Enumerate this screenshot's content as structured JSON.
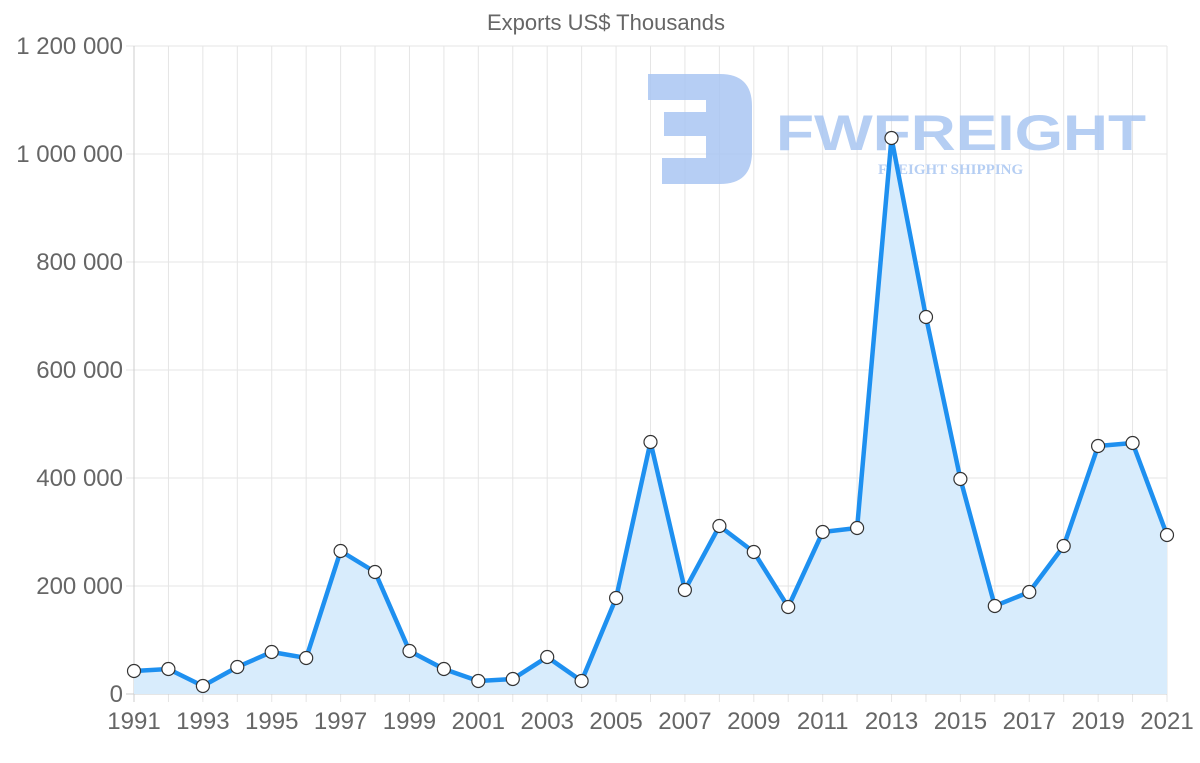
{
  "chart_data": {
    "type": "line",
    "title": "Exports US$ Thousands",
    "xlabel": "",
    "ylabel": "",
    "x": [
      1991,
      1992,
      1993,
      1994,
      1995,
      1996,
      1997,
      1998,
      1999,
      2000,
      2001,
      2002,
      2003,
      2004,
      2005,
      2006,
      2007,
      2008,
      2009,
      2010,
      2011,
      2012,
      2013,
      2014,
      2015,
      2016,
      2017,
      2018,
      2019,
      2020,
      2021
    ],
    "series": [
      {
        "name": "Exports US$ Thousands",
        "values": [
          42600,
          46300,
          14800,
          50000,
          77800,
          66700,
          264800,
          225900,
          79600,
          46300,
          24100,
          27800,
          68500,
          24100,
          177800,
          466700,
          192600,
          311100,
          263000,
          161100,
          300000,
          307400,
          1029600,
          698100,
          398100,
          163000,
          188900,
          274100,
          459300,
          464800,
          294400
        ]
      }
    ],
    "ylim": [
      0,
      1200000
    ],
    "yticks": [
      0,
      200000,
      400000,
      600000,
      800000,
      1000000,
      1200000
    ],
    "ytick_labels": [
      "0",
      "200 000",
      "400 000",
      "600 000",
      "800 000",
      "1 000 000",
      "1 200 000"
    ],
    "xtick_labels": [
      "1991",
      "1993",
      "1995",
      "1997",
      "1999",
      "2001",
      "2003",
      "2005",
      "2007",
      "2009",
      "2011",
      "2013",
      "2015",
      "2017",
      "2019",
      "2021"
    ],
    "grid": true,
    "legend": "none",
    "filled_area": true,
    "colors": {
      "line": "#1e90f0",
      "fill": "#d8ecfc",
      "point_fill": "#ffffff",
      "point_stroke": "#333333",
      "grid": "#e5e5e5",
      "text": "#666666"
    }
  },
  "watermark": {
    "brand": "FWFREIGHT",
    "tagline": "FREIGHT SHIPPING",
    "color": "#a9c6f2"
  }
}
